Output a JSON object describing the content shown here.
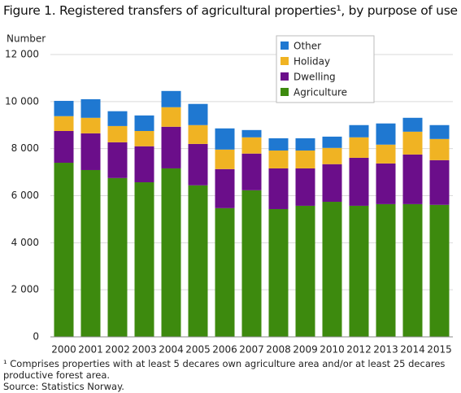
{
  "chart_data": {
    "type": "stacked_bar",
    "title": "Figure 1. Registered transfers of agricultural properties¹, by purpose of use",
    "y_label": "Number",
    "footnote": "¹ Comprises properties with at least 5 decares own agriculture area and/or at least 25 decares productive forest area.",
    "source": "Source: Statistics Norway.",
    "categories": [
      "2000",
      "2001",
      "2002",
      "2003",
      "2004",
      "2005",
      "2006",
      "2007",
      "2008",
      "2009",
      "2010",
      "2012",
      "2013",
      "2014",
      "2015"
    ],
    "series": [
      {
        "name": "Agriculture",
        "color": "#3d8a0e",
        "values": [
          7400,
          7090,
          6750,
          6570,
          7160,
          6440,
          5470,
          6230,
          5430,
          5570,
          5740,
          5570,
          5640,
          5640,
          5610
        ]
      },
      {
        "name": "Dwelling",
        "color": "#6b0e8a",
        "values": [
          1350,
          1560,
          1520,
          1530,
          1770,
          1760,
          1660,
          1560,
          1730,
          1590,
          1600,
          2040,
          1730,
          2110,
          1900
        ]
      },
      {
        "name": "Holiday",
        "color": "#f0b323",
        "values": [
          630,
          660,
          690,
          650,
          830,
          800,
          830,
          690,
          760,
          760,
          690,
          870,
          800,
          970,
          900
        ]
      },
      {
        "name": "Other",
        "color": "#1f78d1",
        "values": [
          650,
          790,
          630,
          660,
          690,
          900,
          900,
          310,
          520,
          520,
          480,
          520,
          900,
          590,
          590
        ]
      }
    ],
    "ylim": [
      0,
      12000
    ],
    "yticks": [
      0,
      {
        "value": 2000,
        "label": "2 000"
      },
      {
        "value": 4000,
        "label": "4 000"
      },
      {
        "value": 6000,
        "label": "6 000"
      },
      {
        "value": 8000,
        "label": "8 000"
      },
      {
        "value": 10000,
        "label": "10 000"
      },
      {
        "value": 12000,
        "label": "12 000"
      }
    ],
    "grid": true
  }
}
